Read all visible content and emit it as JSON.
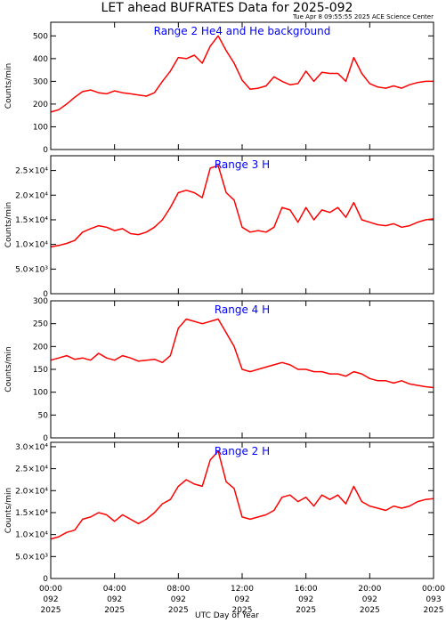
{
  "figure": {
    "title": "LET ahead BUFRATES Data for 2025-092",
    "timestamp": "Tue Apr  8 09:55:55 2025 ACE Science Center",
    "xlabel": "UTC Day of Year",
    "ylabel": "Counts/min",
    "line_color": "#ff0000",
    "label_color": "#0000ff",
    "x_ticks": [
      {
        "hour": 0,
        "time": "00:00",
        "doy": "092",
        "year": "2025"
      },
      {
        "hour": 4,
        "time": "04:00",
        "doy": "092",
        "year": "2025"
      },
      {
        "hour": 8,
        "time": "08:00",
        "doy": "092",
        "year": "2025"
      },
      {
        "hour": 12,
        "time": "12:00",
        "doy": "092",
        "year": "2025"
      },
      {
        "hour": 16,
        "time": "16:00",
        "doy": "092",
        "year": "2025"
      },
      {
        "hour": 20,
        "time": "20:00",
        "doy": "092",
        "year": "2025"
      },
      {
        "hour": 24,
        "time": "00:00",
        "doy": "093",
        "year": "2025"
      }
    ]
  },
  "chart_data": [
    {
      "type": "line",
      "label": "Range 2 He4 and He background",
      "xlim": [
        0,
        24
      ],
      "ylim": [
        0,
        560
      ],
      "yticks": [
        {
          "v": 0,
          "t": "0"
        },
        {
          "v": 100,
          "t": "100"
        },
        {
          "v": 200,
          "t": "200"
        },
        {
          "v": 300,
          "t": "300"
        },
        {
          "v": 400,
          "t": "400"
        },
        {
          "v": 500,
          "t": "500"
        }
      ],
      "x": [
        0,
        0.5,
        1,
        1.5,
        2,
        2.5,
        3,
        3.5,
        4,
        4.5,
        5,
        5.5,
        6,
        6.5,
        7,
        7.5,
        8,
        8.5,
        9,
        9.5,
        10,
        10.5,
        11,
        11.5,
        12,
        12.5,
        13,
        13.5,
        14,
        14.5,
        15,
        15.5,
        16,
        16.5,
        17,
        17.5,
        18,
        18.5,
        19,
        19.5,
        20,
        20.5,
        21,
        21.5,
        22,
        22.5,
        23,
        23.5,
        24
      ],
      "y": [
        165,
        175,
        200,
        230,
        255,
        262,
        250,
        245,
        258,
        250,
        245,
        240,
        235,
        250,
        300,
        345,
        405,
        400,
        415,
        380,
        455,
        500,
        435,
        380,
        305,
        265,
        270,
        280,
        320,
        300,
        285,
        290,
        345,
        300,
        340,
        335,
        335,
        300,
        405,
        335,
        290,
        275,
        270,
        280,
        270,
        285,
        295,
        300,
        300
      ]
    },
    {
      "type": "line",
      "label": "Range 3 H",
      "xlim": [
        0,
        24
      ],
      "ylim": [
        0,
        28000
      ],
      "yticks": [
        {
          "v": 0,
          "t": "0"
        },
        {
          "v": 5000,
          "t": "5.0×10³"
        },
        {
          "v": 10000,
          "t": "1.0×10⁴"
        },
        {
          "v": 15000,
          "t": "1.5×10⁴"
        },
        {
          "v": 20000,
          "t": "2.0×10⁴"
        },
        {
          "v": 25000,
          "t": "2.5×10⁴"
        }
      ],
      "x": [
        0,
        0.5,
        1,
        1.5,
        2,
        2.5,
        3,
        3.5,
        4,
        4.5,
        5,
        5.5,
        6,
        6.5,
        7,
        7.5,
        8,
        8.5,
        9,
        9.5,
        10,
        10.5,
        11,
        11.5,
        12,
        12.5,
        13,
        13.5,
        14,
        14.5,
        15,
        15.5,
        16,
        16.5,
        17,
        17.5,
        18,
        18.5,
        19,
        19.5,
        20,
        20.5,
        21,
        21.5,
        22,
        22.5,
        23,
        23.5,
        24
      ],
      "y": [
        9500,
        9800,
        10200,
        10800,
        12500,
        13200,
        13800,
        13500,
        12800,
        13200,
        12200,
        12000,
        12500,
        13500,
        15000,
        17500,
        20500,
        21000,
        20500,
        19500,
        25500,
        26000,
        20500,
        19000,
        13500,
        12500,
        12800,
        12500,
        13500,
        17500,
        17000,
        14500,
        17500,
        15000,
        17000,
        16500,
        17500,
        15500,
        18500,
        15000,
        14500,
        14000,
        13800,
        14200,
        13500,
        13800,
        14500,
        15000,
        15200
      ]
    },
    {
      "type": "line",
      "label": "Range 4 H",
      "xlim": [
        0,
        24
      ],
      "ylim": [
        0,
        300
      ],
      "yticks": [
        {
          "v": 0,
          "t": "0"
        },
        {
          "v": 50,
          "t": "50"
        },
        {
          "v": 100,
          "t": "100"
        },
        {
          "v": 150,
          "t": "150"
        },
        {
          "v": 200,
          "t": "200"
        },
        {
          "v": 250,
          "t": "250"
        },
        {
          "v": 300,
          "t": "300"
        }
      ],
      "x": [
        0,
        0.5,
        1,
        1.5,
        2,
        2.5,
        3,
        3.5,
        4,
        4.5,
        5,
        5.5,
        6,
        6.5,
        7,
        7.5,
        8,
        8.5,
        9,
        9.5,
        10,
        10.5,
        11,
        11.5,
        12,
        12.5,
        13,
        13.5,
        14,
        14.5,
        15,
        15.5,
        16,
        16.5,
        17,
        17.5,
        18,
        18.5,
        19,
        19.5,
        20,
        20.5,
        21,
        21.5,
        22,
        22.5,
        23,
        23.5,
        24
      ],
      "y": [
        170,
        175,
        180,
        172,
        175,
        170,
        185,
        175,
        170,
        180,
        175,
        168,
        170,
        172,
        165,
        180,
        240,
        260,
        255,
        250,
        255,
        260,
        230,
        200,
        150,
        145,
        150,
        155,
        160,
        165,
        160,
        150,
        150,
        145,
        145,
        140,
        140,
        135,
        145,
        140,
        130,
        125,
        125,
        120,
        125,
        118,
        115,
        112,
        110
      ]
    },
    {
      "type": "line",
      "label": "Range 2 H",
      "xlim": [
        0,
        24
      ],
      "ylim": [
        0,
        31000
      ],
      "yticks": [
        {
          "v": 0,
          "t": "0"
        },
        {
          "v": 5000,
          "t": "5.0×10³"
        },
        {
          "v": 10000,
          "t": "1.0×10⁴"
        },
        {
          "v": 15000,
          "t": "1.5×10⁴"
        },
        {
          "v": 20000,
          "t": "2.0×10⁴"
        },
        {
          "v": 25000,
          "t": "2.5×10⁴"
        },
        {
          "v": 30000,
          "t": "3.0×10⁴"
        }
      ],
      "x": [
        0,
        0.5,
        1,
        1.5,
        2,
        2.5,
        3,
        3.5,
        4,
        4.5,
        5,
        5.5,
        6,
        6.5,
        7,
        7.5,
        8,
        8.5,
        9,
        9.5,
        10,
        10.5,
        11,
        11.5,
        12,
        12.5,
        13,
        13.5,
        14,
        14.5,
        15,
        15.5,
        16,
        16.5,
        17,
        17.5,
        18,
        18.5,
        19,
        19.5,
        20,
        20.5,
        21,
        21.5,
        22,
        22.5,
        23,
        23.5,
        24
      ],
      "y": [
        9000,
        9500,
        10500,
        11000,
        13500,
        14000,
        15000,
        14500,
        13000,
        14500,
        13500,
        12500,
        13500,
        15000,
        17000,
        18000,
        21000,
        22500,
        21500,
        21000,
        27000,
        29000,
        22000,
        20500,
        14000,
        13500,
        14000,
        14500,
        15500,
        18500,
        19000,
        17500,
        18500,
        16500,
        19000,
        18000,
        19000,
        17000,
        21000,
        17500,
        16500,
        16000,
        15500,
        16500,
        16000,
        16500,
        17500,
        18000,
        18200
      ]
    }
  ]
}
